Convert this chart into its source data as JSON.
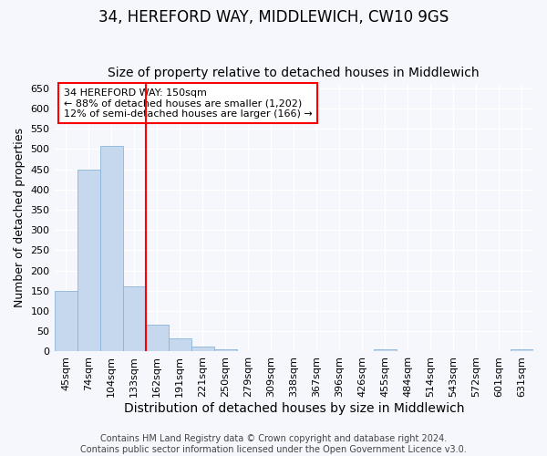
{
  "title1": "34, HEREFORD WAY, MIDDLEWICH, CW10 9GS",
  "title2": "Size of property relative to detached houses in Middlewich",
  "xlabel": "Distribution of detached houses by size in Middlewich",
  "ylabel": "Number of detached properties",
  "categories": [
    "45sqm",
    "74sqm",
    "104sqm",
    "133sqm",
    "162sqm",
    "191sqm",
    "221sqm",
    "250sqm",
    "279sqm",
    "309sqm",
    "338sqm",
    "367sqm",
    "396sqm",
    "426sqm",
    "455sqm",
    "484sqm",
    "514sqm",
    "543sqm",
    "572sqm",
    "601sqm",
    "631sqm"
  ],
  "values": [
    150,
    450,
    508,
    160,
    67,
    32,
    12,
    5,
    0,
    0,
    0,
    0,
    0,
    0,
    5,
    0,
    0,
    0,
    0,
    0,
    5
  ],
  "bar_color": "#c5d8ee",
  "bar_edge_color": "#8ab4d8",
  "ylim": [
    0,
    660
  ],
  "yticks": [
    0,
    50,
    100,
    150,
    200,
    250,
    300,
    350,
    400,
    450,
    500,
    550,
    600,
    650
  ],
  "red_line_index": 4,
  "annotation_text_line1": "34 HEREFORD WAY: 150sqm",
  "annotation_text_line2": "← 88% of detached houses are smaller (1,202)",
  "annotation_text_line3": "12% of semi-detached houses are larger (166) →",
  "annotation_box_facecolor": "white",
  "annotation_box_edgecolor": "red",
  "footer_line1": "Contains HM Land Registry data © Crown copyright and database right 2024.",
  "footer_line2": "Contains public sector information licensed under the Open Government Licence v3.0.",
  "bg_color": "#f5f7fc",
  "plot_bg_color": "#f5f7fc",
  "grid_color": "white",
  "title1_fontsize": 12,
  "title2_fontsize": 10,
  "xlabel_fontsize": 10,
  "ylabel_fontsize": 9,
  "tick_fontsize": 8,
  "annotation_fontsize": 8,
  "footer_fontsize": 7
}
